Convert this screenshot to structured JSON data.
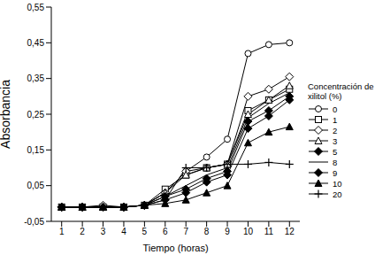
{
  "chart_data": {
    "type": "line",
    "x_label": "Tiempo (horas)",
    "y_label": "Absorbancia",
    "legend_title": "Concentración de xilitol (%)",
    "legend": "right",
    "grid": false,
    "x": [
      1,
      2,
      3,
      4,
      5,
      6,
      7,
      8,
      9,
      10,
      11,
      12
    ],
    "xlim": [
      0.5,
      12.5
    ],
    "xticks": [
      1,
      2,
      3,
      4,
      5,
      6,
      7,
      8,
      9,
      10,
      11,
      12
    ],
    "ylim": [
      -0.05,
      0.55
    ],
    "yticks": [
      {
        "value": -0.05,
        "label": "-0,05"
      },
      {
        "value": 0.05,
        "label": "0,05"
      },
      {
        "value": 0.15,
        "label": "0,15"
      },
      {
        "value": 0.25,
        "label": "0,25"
      },
      {
        "value": 0.35,
        "label": "0,35"
      },
      {
        "value": 0.45,
        "label": "0,45"
      },
      {
        "value": 0.55,
        "label": "0,55"
      }
    ],
    "series": [
      {
        "name": "0",
        "color": "#000000",
        "marker": "circle-open",
        "values": [
          -0.01,
          -0.01,
          -0.01,
          -0.01,
          -0.005,
          0.03,
          0.09,
          0.13,
          0.18,
          0.42,
          0.445,
          0.45
        ]
      },
      {
        "name": "1",
        "color": "#000000",
        "marker": "square-open",
        "values": [
          -0.01,
          -0.01,
          -0.01,
          -0.01,
          -0.005,
          0.04,
          0.08,
          0.1,
          0.11,
          0.26,
          0.29,
          0.32
        ]
      },
      {
        "name": "2",
        "color": "#000000",
        "marker": "diamond-open",
        "values": [
          -0.01,
          -0.01,
          -0.005,
          -0.01,
          -0.005,
          0.03,
          0.09,
          0.1,
          0.11,
          0.3,
          0.32,
          0.355
        ]
      },
      {
        "name": "3",
        "color": "#000000",
        "marker": "triangle-open",
        "values": [
          -0.01,
          -0.01,
          -0.01,
          -0.01,
          -0.005,
          0.03,
          0.08,
          0.1,
          0.11,
          0.25,
          0.29,
          0.33
        ]
      },
      {
        "name": "5",
        "color": "#000000",
        "marker": "diamond",
        "values": [
          -0.01,
          -0.01,
          -0.01,
          -0.01,
          -0.005,
          0.02,
          0.04,
          0.07,
          0.09,
          0.23,
          0.26,
          0.3
        ]
      },
      {
        "name": "8",
        "color": "#000000",
        "marker": "none",
        "values": [
          -0.01,
          -0.01,
          -0.01,
          -0.01,
          -0.005,
          0.02,
          0.05,
          0.08,
          0.1,
          0.24,
          0.28,
          0.31
        ]
      },
      {
        "name": "9",
        "color": "#000000",
        "marker": "diamond",
        "values": [
          -0.01,
          -0.01,
          -0.01,
          -0.01,
          -0.005,
          0.01,
          0.03,
          0.06,
          0.08,
          0.21,
          0.245,
          0.29
        ]
      },
      {
        "name": "10",
        "color": "#000000",
        "marker": "triangle",
        "values": [
          -0.01,
          -0.01,
          -0.01,
          -0.01,
          -0.005,
          0.0,
          0.01,
          0.03,
          0.05,
          0.17,
          0.2,
          0.215
        ]
      },
      {
        "name": "20",
        "color": "#000000",
        "marker": "plus",
        "values": [
          -0.01,
          -0.01,
          -0.01,
          -0.01,
          -0.005,
          0.01,
          0.1,
          0.1,
          0.11,
          0.11,
          0.115,
          0.11
        ]
      }
    ]
  }
}
